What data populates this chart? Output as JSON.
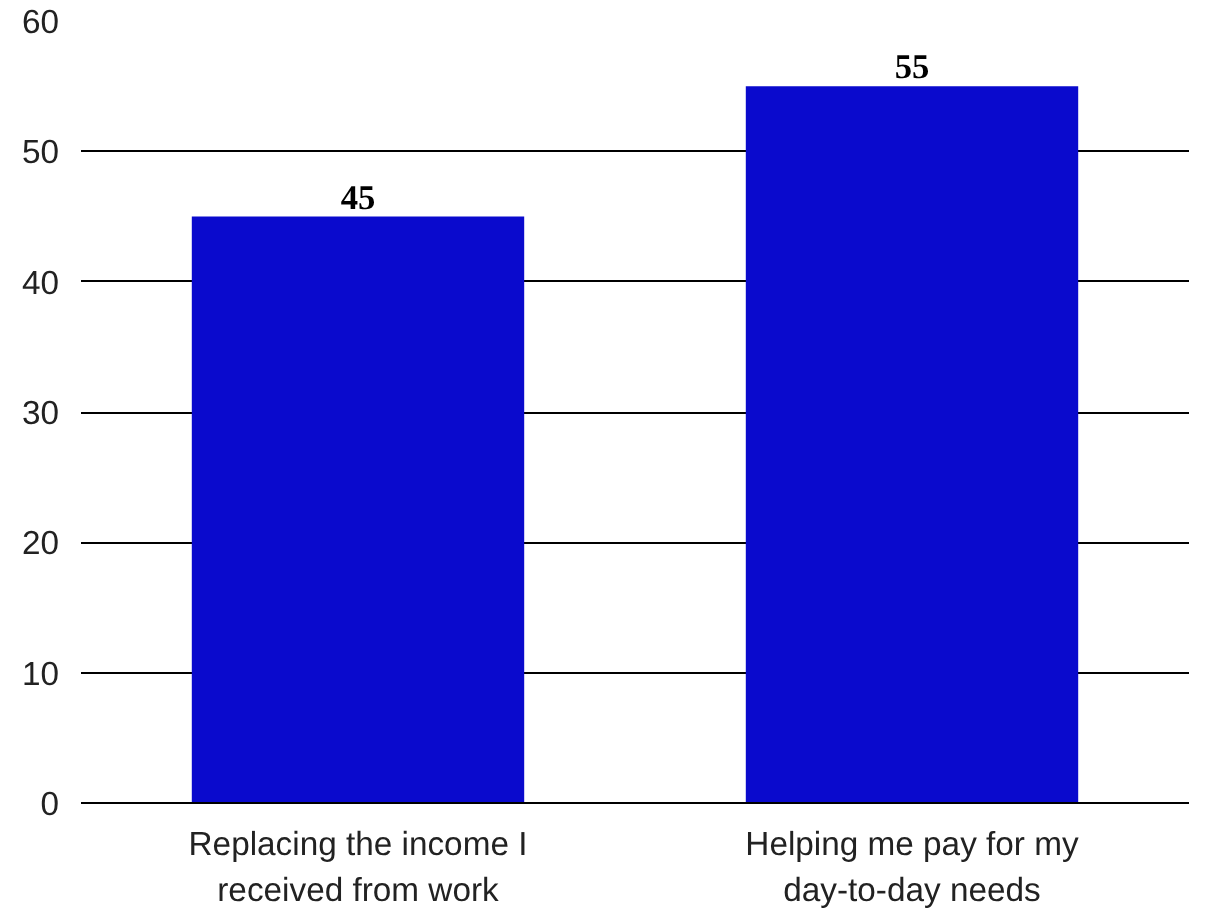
{
  "chart_data": {
    "type": "bar",
    "categories": [
      "Replacing the income I received from work",
      "Helping me pay for my day-to-day needs"
    ],
    "values": [
      45,
      55
    ],
    "color": "#0a0acd",
    "ylim": [
      0,
      60
    ],
    "yticks": [
      0,
      10,
      20,
      30,
      40,
      50,
      60
    ],
    "grid": "y",
    "data_labels": true
  }
}
